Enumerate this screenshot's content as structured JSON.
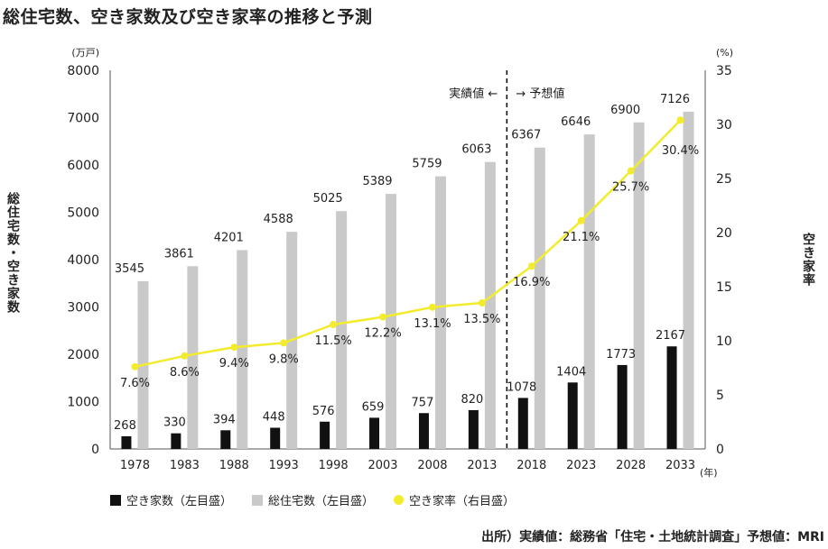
{
  "title": "総住宅数、空き家数及び空き家率の推移と予測",
  "source": "出所）実績値：総務省「住宅・土地統計調査」予想値：MRI",
  "colors": {
    "vacant": "#111111",
    "total": "#c9c9c9",
    "rate": "#f2ec2c"
  },
  "chart_data": {
    "type": "bar",
    "categories": [
      "1978",
      "1983",
      "1988",
      "1993",
      "1998",
      "2003",
      "2008",
      "2013",
      "2018",
      "2023",
      "2028",
      "2033"
    ],
    "series": [
      {
        "name": "空き家数（左目盛）",
        "axis": "left",
        "type": "bar",
        "values": [
          268,
          330,
          394,
          448,
          576,
          659,
          757,
          820,
          1078,
          1404,
          1773,
          2167
        ],
        "labels": [
          "268",
          "330",
          "394",
          "448",
          "576",
          "659",
          "757",
          "820",
          "1078",
          "1404",
          "1773",
          "2167"
        ]
      },
      {
        "name": "総住宅数（左目盛）",
        "axis": "left",
        "type": "bar",
        "values": [
          3545,
          3861,
          4201,
          4588,
          5025,
          5389,
          5759,
          6063,
          6367,
          6646,
          6900,
          7126
        ],
        "labels": [
          "3545",
          "3861",
          "4201",
          "4588",
          "5025",
          "5389",
          "5759",
          "6063",
          "6367",
          "6646",
          "6900",
          "7126"
        ]
      },
      {
        "name": "空き家率（右目盛）",
        "axis": "right",
        "type": "line",
        "values": [
          7.6,
          8.6,
          9.4,
          9.8,
          11.5,
          12.2,
          13.1,
          13.5,
          16.9,
          21.1,
          25.7,
          30.4
        ],
        "labels": [
          "7.6%",
          "8.6%",
          "9.4%",
          "9.8%",
          "11.5%",
          "12.2%",
          "13.1%",
          "13.5%",
          "16.9%",
          "21.1%",
          "25.7%",
          "30.4%"
        ]
      }
    ],
    "ylabel_left": "総住宅数・空き家数",
    "ylabel_right": "空き家率",
    "unit_left": "(万戸)",
    "unit_right": "(%)",
    "unit_x": "(年)",
    "ylim_left": [
      0,
      8000
    ],
    "ylim_right": [
      0,
      35
    ],
    "yticks_left": [
      "0",
      "1000",
      "2000",
      "3000",
      "4000",
      "5000",
      "6000",
      "7000",
      "8000"
    ],
    "yticks_right": [
      "0",
      "5",
      "10",
      "15",
      "20",
      "25",
      "30",
      "35"
    ],
    "divider_after": "2013",
    "annotation_actual": "実績値 ←",
    "annotation_forecast": "→ 予想値",
    "grid": false,
    "legend_position": "bottom-left"
  }
}
